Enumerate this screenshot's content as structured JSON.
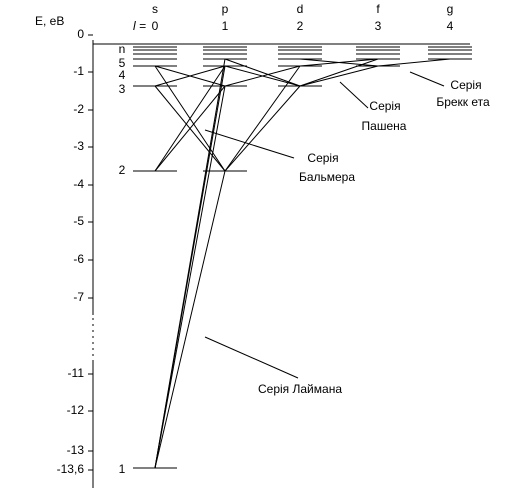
{
  "axis": {
    "label": "E, eB",
    "ticks": [
      "0",
      "-1",
      "-2",
      "-3",
      "-4",
      "-5",
      "-6",
      "-7",
      "-11",
      "-12",
      "-13",
      "-13,6"
    ]
  },
  "orbital_symbol": "l =",
  "columns": [
    {
      "letter": "s",
      "l": "0"
    },
    {
      "letter": "p",
      "l": "1"
    },
    {
      "letter": "d",
      "l": "2"
    },
    {
      "letter": "f",
      "l": "3"
    },
    {
      "letter": "g",
      "l": "4"
    }
  ],
  "levels": [
    "1",
    "2",
    "3",
    "4",
    "5",
    "n"
  ],
  "series": [
    {
      "lines": [
        "Серія Лаймана"
      ]
    },
    {
      "lines": [
        "Серія",
        "Бальмера"
      ]
    },
    {
      "lines": [
        "Серія",
        "Пашена"
      ]
    },
    {
      "lines": [
        "Серія",
        "Брекк ета"
      ]
    }
  ]
}
